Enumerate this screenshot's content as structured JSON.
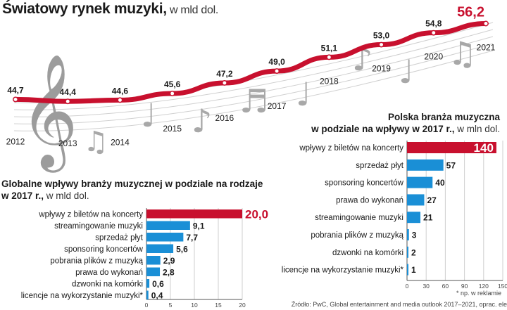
{
  "header": {
    "title": "Światowy rynek muzyki,",
    "unit": " w mld dol."
  },
  "left_panel": {
    "title_line1": "Globalne wpływy branży muzycznej w podziale na rodzaje",
    "title_line2": "w 2017 r.,",
    "unit": " w mld dol."
  },
  "right_panel": {
    "title_line1": "Polska branża muzyczna",
    "title_line2": "w podziale na wpływy w 2017 r.,",
    "unit": " w mln dol."
  },
  "footnote": "* np. w reklamie",
  "source": "Źródło: PwC, Global entertainment and media outlook 2017–2021, oprac. ele",
  "colors": {
    "accent": "#c8102e",
    "bar_blue": "#1a8fd6",
    "notes_gray": "#9c9c9c"
  },
  "chart_data": [
    {
      "type": "line",
      "title": "Światowy rynek muzyki",
      "unit": "w mld dol.",
      "x": [
        "2012",
        "2013",
        "2014",
        "2015",
        "2016",
        "2017",
        "2018",
        "2019",
        "2020",
        "2021"
      ],
      "series": [
        {
          "values": [
            44.7,
            44.4,
            44.6,
            45.6,
            47.2,
            49.0,
            51.1,
            53.0,
            54.8,
            56.2
          ]
        }
      ],
      "value_labels": [
        "44,7",
        "44,4",
        "44,6",
        "45,6",
        "47,2",
        "49,0",
        "51,1",
        "53,0",
        "54,8",
        "56,2"
      ]
    },
    {
      "type": "bar",
      "title": "Globalne wpływy branży muzycznej w podziale na rodzaje w 2017 r.",
      "unit": "w mld dol.",
      "categories": [
        "wpływy z biletów na koncerty",
        "streamingowanie muzyki",
        "sprzedaż płyt",
        "sponsoring koncertów",
        "pobrania plików z muzyką",
        "prawa do wykonań",
        "dzwonki na komórki",
        "licencje na wykorzystanie muzyki*"
      ],
      "values": [
        20.0,
        9.1,
        7.7,
        5.6,
        2.9,
        2.8,
        0.6,
        0.4
      ],
      "value_labels": [
        "20,0",
        "9,1",
        "7,7",
        "5,6",
        "2,9",
        "2,8",
        "0,6",
        "0,4"
      ],
      "xlim": [
        0,
        20
      ],
      "xticks": [
        "0",
        "5",
        "10",
        "15",
        "20"
      ],
      "highlight_index": 0
    },
    {
      "type": "bar",
      "title": "Polska branża muzyczna w podziale na wpływy w 2017 r.",
      "unit": "w mln dol.",
      "categories": [
        "wpływy z biletów na koncerty",
        "sprzedaż płyt",
        "sponsoring koncertów",
        "prawa do wykonań",
        "streamingowanie muzyki",
        "pobrania plików z muzyką",
        "dzwonki na komórki",
        "licencje na wykorzystanie muzyki*"
      ],
      "values": [
        140,
        57,
        40,
        27,
        21,
        3,
        2,
        1
      ],
      "value_labels": [
        "140",
        "57",
        "40",
        "27",
        "21",
        "3",
        "2",
        "1"
      ],
      "xlim": [
        0,
        150
      ],
      "xticks": [
        "0",
        "30",
        "60",
        "90",
        "120",
        "150"
      ],
      "highlight_index": 0
    }
  ]
}
